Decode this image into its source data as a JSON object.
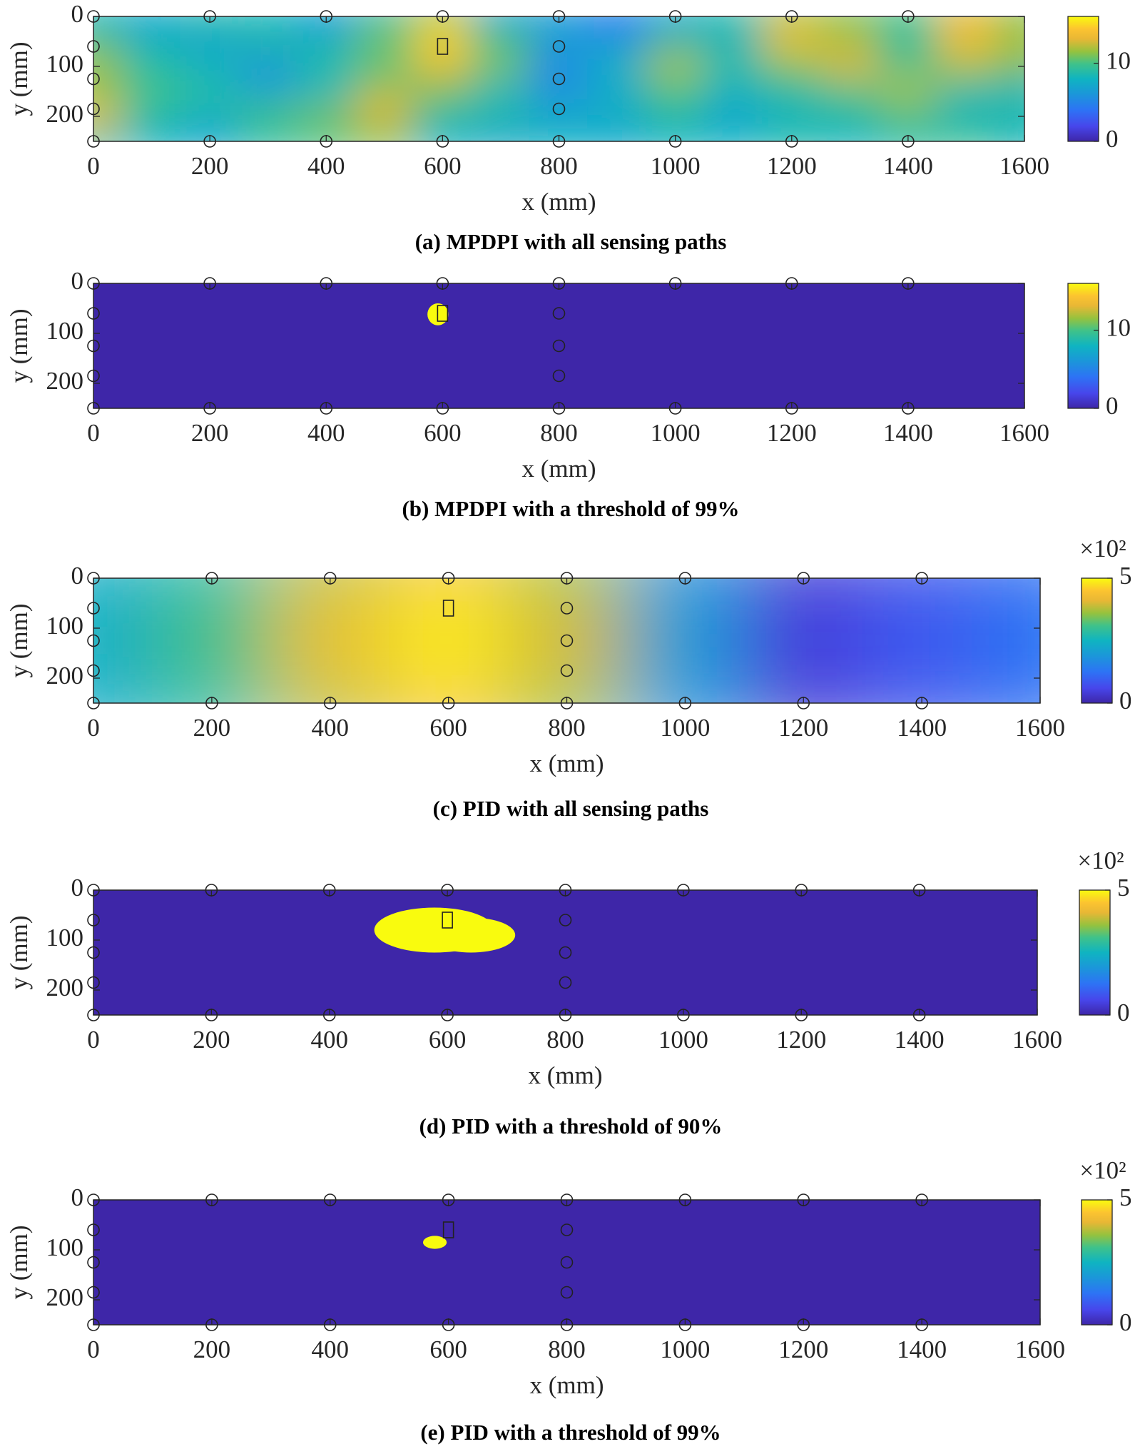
{
  "sensors": {
    "x": [
      0,
      200,
      400,
      600,
      800,
      1000,
      1200,
      1400,
      0,
      200,
      400,
      600,
      800,
      1000,
      1200,
      1400,
      0,
      0,
      0,
      800,
      800,
      800
    ],
    "y": [
      0,
      0,
      0,
      0,
      0,
      0,
      0,
      0,
      250,
      250,
      250,
      250,
      250,
      250,
      250,
      250,
      60,
      125,
      185,
      60,
      125,
      185
    ]
  },
  "damage": {
    "x": 600,
    "y": 60
  },
  "chart_data": [
    {
      "type": "heatmap",
      "caption": "(a) MPDPI with all sensing paths",
      "xlabel": "x (mm)",
      "ylabel": "y (mm)",
      "xlim": [
        0,
        1600
      ],
      "ylim": [
        0,
        250
      ],
      "y_reversed": true,
      "xticks": [
        0,
        200,
        400,
        600,
        800,
        1000,
        1200,
        1400,
        1600
      ],
      "yticks": [
        0,
        100,
        200
      ],
      "colormap": "parula",
      "clim": [
        0,
        16
      ],
      "cticks": [
        0,
        10
      ],
      "z": {
        "x": [
          0,
          100,
          200,
          300,
          400,
          500,
          600,
          700,
          800,
          900,
          1000,
          1100,
          1200,
          1300,
          1400,
          1500,
          1600
        ],
        "y": [
          0,
          50,
          100,
          150,
          200,
          250
        ],
        "values": [
          [
            8,
            7,
            9,
            8,
            6,
            9,
            12,
            7,
            6,
            4,
            7,
            9,
            12,
            11,
            10,
            13,
            11
          ],
          [
            10,
            8,
            7,
            9,
            8,
            11,
            15,
            10,
            7,
            6,
            9,
            8,
            14,
            12,
            9,
            14,
            12
          ],
          [
            12,
            9,
            8,
            6,
            9,
            10,
            13,
            11,
            5,
            8,
            12,
            9,
            11,
            13,
            10,
            12,
            11
          ],
          [
            11,
            10,
            9,
            7,
            8,
            12,
            11,
            8,
            6,
            7,
            10,
            8,
            9,
            10,
            12,
            9,
            8
          ],
          [
            14,
            9,
            8,
            10,
            11,
            13,
            9,
            9,
            7,
            8,
            9,
            7,
            8,
            9,
            10,
            8,
            9
          ],
          [
            9,
            8,
            7,
            9,
            10,
            11,
            8,
            7,
            8,
            7,
            8,
            8,
            9,
            8,
            9,
            10,
            8
          ]
        ]
      }
    },
    {
      "type": "heatmap",
      "caption": "(b) MPDPI with a threshold of 99%",
      "xlabel": "x (mm)",
      "ylabel": "y (mm)",
      "xlim": [
        0,
        1600
      ],
      "ylim": [
        0,
        250
      ],
      "y_reversed": true,
      "xticks": [
        0,
        200,
        400,
        600,
        800,
        1000,
        1200,
        1400,
        1600
      ],
      "yticks": [
        0,
        100,
        200
      ],
      "colormap": "parula",
      "clim": [
        0,
        16
      ],
      "cticks": [
        0,
        10
      ],
      "background": 0,
      "regions": [
        {
          "x": 592,
          "y": 62,
          "rx": 18,
          "ry": 22,
          "value": 16
        }
      ]
    },
    {
      "type": "heatmap",
      "caption": "(c) PID with all sensing paths",
      "xlabel": "x (mm)",
      "ylabel": "y (mm)",
      "xlim": [
        0,
        1600
      ],
      "ylim": [
        0,
        250
      ],
      "y_reversed": true,
      "xticks": [
        0,
        200,
        400,
        600,
        800,
        1000,
        1200,
        1400,
        1600
      ],
      "yticks": [
        0,
        100,
        200
      ],
      "colormap": "parula",
      "clim": [
        0,
        5
      ],
      "cticks": [
        0,
        5
      ],
      "colorbar_scale": "×10²",
      "z": {
        "x": [
          0,
          200,
          400,
          600,
          800,
          1000,
          1200,
          1400,
          1600
        ],
        "y": [
          0,
          125,
          250
        ],
        "values": [
          [
            2.3,
            2.8,
            3.8,
            4.5,
            3.6,
            1.8,
            0.4,
            0.8,
            1.2
          ],
          [
            2.5,
            3.2,
            4.5,
            5,
            4.2,
            2.1,
            0.5,
            0.9,
            1.3
          ],
          [
            2.3,
            2.8,
            3.8,
            4.5,
            3.6,
            1.8,
            0.4,
            0.8,
            1.2
          ]
        ]
      }
    },
    {
      "type": "heatmap",
      "caption": "(d) PID with a threshold of 90%",
      "xlabel": "x (mm)",
      "ylabel": "y (mm)",
      "xlim": [
        0,
        1600
      ],
      "ylim": [
        0,
        250
      ],
      "y_reversed": true,
      "xticks": [
        0,
        200,
        400,
        600,
        800,
        1000,
        1200,
        1400,
        1600
      ],
      "yticks": [
        0,
        100,
        200
      ],
      "colormap": "parula",
      "clim": [
        0,
        5
      ],
      "cticks": [
        0,
        5
      ],
      "colorbar_scale": "×10²",
      "background": 0,
      "regions": [
        {
          "x": 578,
          "y": 80,
          "rx": 102,
          "ry": 45,
          "value": 5
        },
        {
          "x": 640,
          "y": 90,
          "rx": 75,
          "ry": 35,
          "value": 5
        }
      ]
    },
    {
      "type": "heatmap",
      "caption": "(e) PID with a threshold of 99%",
      "xlabel": "x (mm)",
      "ylabel": "y (mm)",
      "xlim": [
        0,
        1600
      ],
      "ylim": [
        0,
        250
      ],
      "y_reversed": true,
      "xticks": [
        0,
        200,
        400,
        600,
        800,
        1000,
        1200,
        1400,
        1600
      ],
      "yticks": [
        0,
        100,
        200
      ],
      "colormap": "parula",
      "clim": [
        0,
        5
      ],
      "cticks": [
        0,
        5
      ],
      "colorbar_scale": "×10²",
      "background": 0,
      "regions": [
        {
          "x": 577,
          "y": 85,
          "rx": 20,
          "ry": 13,
          "value": 5
        }
      ]
    }
  ]
}
